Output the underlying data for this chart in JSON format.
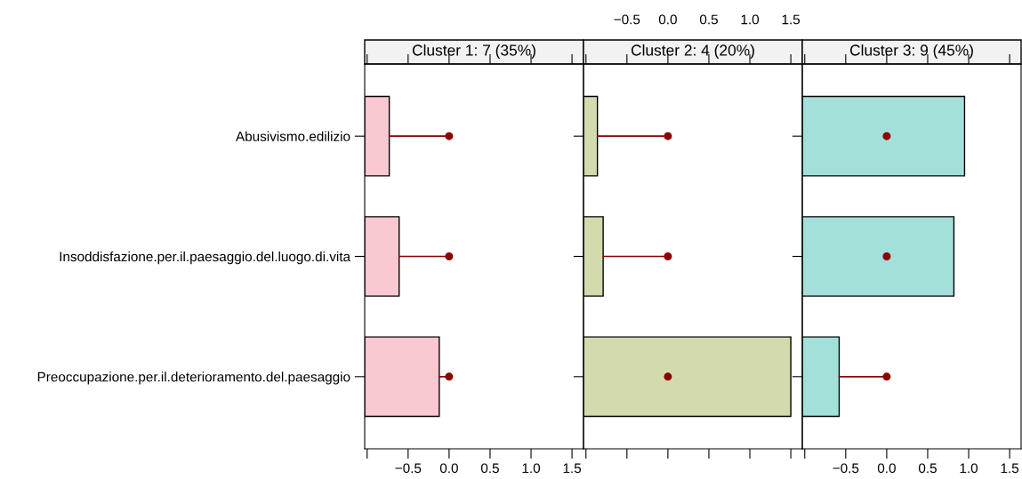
{
  "chart_data": [
    {
      "type": "bar",
      "orientation": "horizontal",
      "title": "Cluster 1: 7 (35%)",
      "categories": [
        "Abusivismo.edilizio",
        "Insoddisfazione.per.il.paesaggio.del.luogo.di.vita",
        "Preoccupazione.per.il.deterioramento.del.paesaggio"
      ],
      "series": [
        {
          "color": "#f9c8d1",
          "base": [
            -1.03,
            -1.03,
            -1.03
          ],
          "values": [
            0.3,
            0.42,
            0.91
          ]
        },
        {
          "type": "scatter",
          "color": "#8b0000",
          "values": [
            0,
            0,
            0
          ],
          "errors": [
            [
              -0.73,
              0
            ],
            [
              -0.61,
              0
            ],
            [
              -0.12,
              0
            ]
          ]
        }
      ],
      "xlim": [
        -1.03,
        1.64
      ],
      "xticks": [
        {
          "value": -1.0,
          "label": null
        },
        {
          "value": -0.5,
          "label": "−0.5"
        },
        {
          "value": 0,
          "label": "0.0"
        },
        {
          "value": 0.5,
          "label": "0.5"
        },
        {
          "value": 1,
          "label": "1.0"
        },
        {
          "value": 1.5,
          "label": "1.5"
        }
      ],
      "marker": "circle"
    },
    {
      "type": "bar",
      "orientation": "horizontal",
      "title": "Cluster 2: 4 (20%)",
      "series": [
        {
          "color": "#d3dbae",
          "axis": "x2",
          "base": [
            -1.03,
            -1.03,
            -1.03
          ],
          "values": [
            0.17,
            0.24,
            2.53
          ]
        },
        {
          "type": "scatter",
          "color": "#8b0000",
          "axis": "x2",
          "values": [
            0,
            0,
            0
          ],
          "errors": [
            [
              -0.86,
              0
            ],
            [
              -0.79,
              0
            ],
            null
          ]
        }
      ],
      "x2lim": [
        -1.03,
        1.64
      ],
      "x2ticks": [
        {
          "value": -1.0,
          "label": null
        },
        {
          "value": -0.5,
          "label": "−0.5"
        },
        {
          "value": 0,
          "label": "0.0"
        },
        0.5,
        {
          "value": 1,
          "label": "1.0"
        },
        1.5
      ],
      "tick_labels": "x",
      "marker": "circle"
    },
    {
      "type": "bar",
      "orientation": "horizontal",
      "title": "Cluster 3: 9 (45%)",
      "series": [
        {
          "color": "#a3e0d9",
          "base": [
            -1.03,
            -1.03,
            -1.03
          ],
          "values": [
            1.98,
            1.85,
            0.45
          ]
        },
        {
          "type": "scatter",
          "color": "#8b0000",
          "values": [
            0,
            0,
            0
          ],
          "errors": [
            null,
            null,
            [
              -0.58,
              0
            ]
          ]
        }
      ],
      "xlim": [
        -1.03,
        1.64
      ],
      "xticks": [
        {
          "value": -1.0,
          "label": null
        },
        {
          "value": -0.5,
          "label": "−0.5"
        },
        {
          "value": 0,
          "label": "0.0"
        },
        {
          "value": 0.5,
          "label": "0.5"
        },
        {
          "value": 1,
          "label": "1.0"
        },
        {
          "value": 1.5,
          "label": "1.5"
        }
      ],
      "tick_labels": "x",
      "marker": "circle"
    }
  ]
}
